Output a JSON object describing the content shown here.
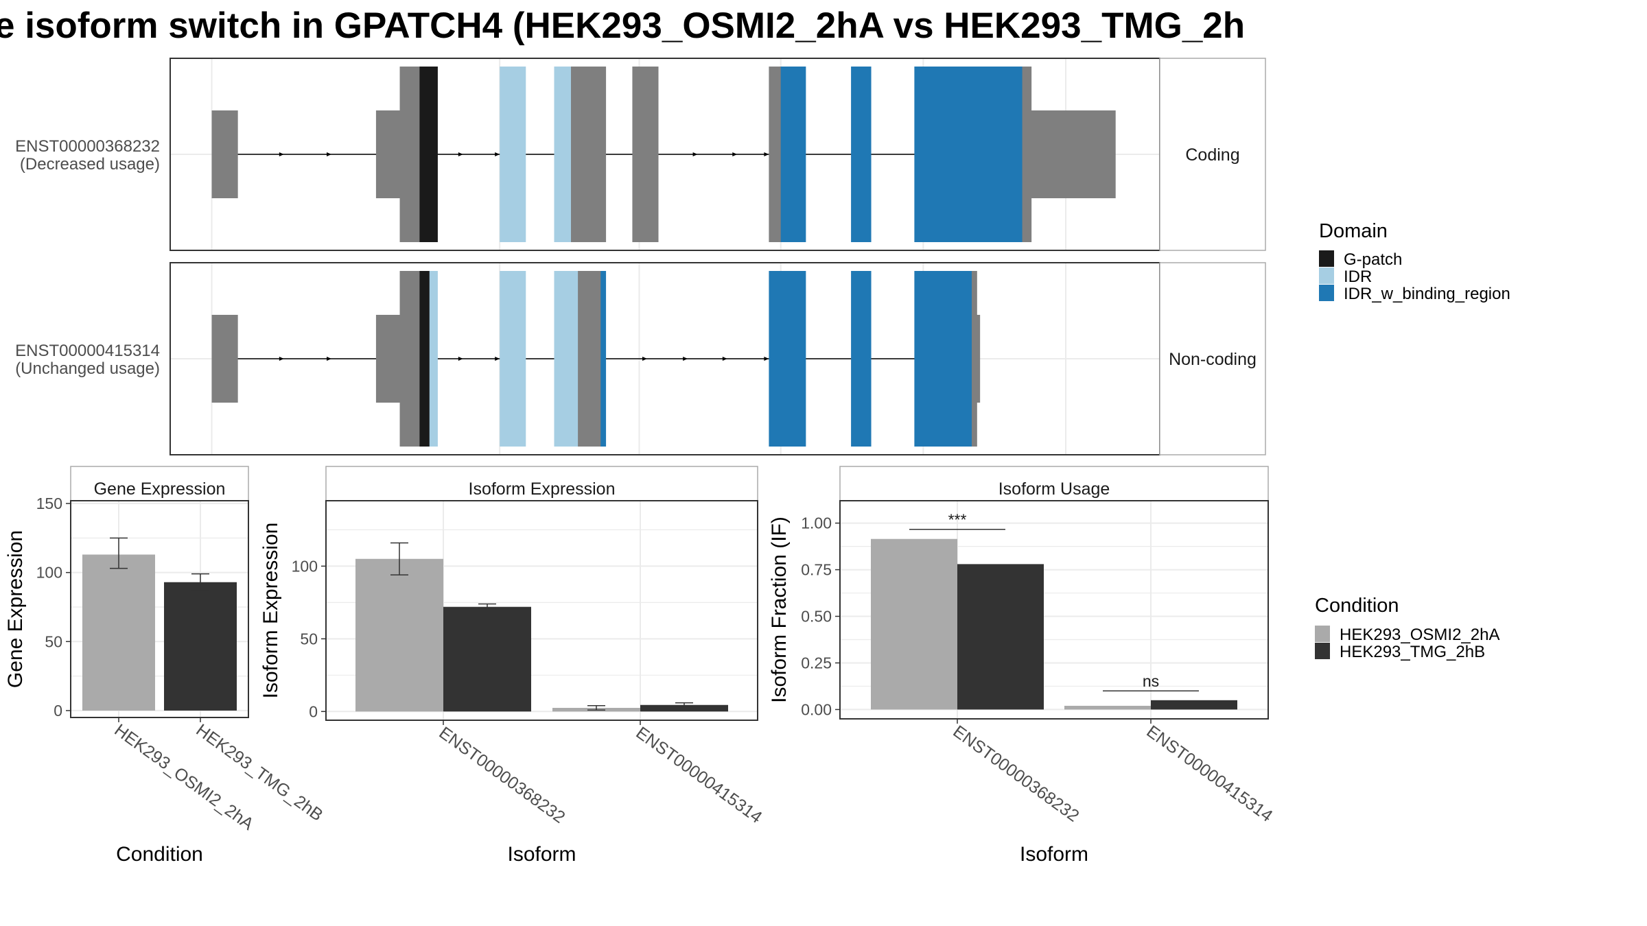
{
  "title": "e isoform switch in GPATCH4 (HEK293_OSMI2_2hA vs HEK293_TMG_2h",
  "colors": {
    "exon": "#7F7F7F",
    "cond_a": "#AAAAAA",
    "cond_b": "#333333",
    "panel_border": "#333333",
    "strip_border": "#AAAAAA",
    "grid": "#EBEBEB"
  },
  "structure": {
    "domain_legend": {
      "title": "Domain",
      "items": [
        {
          "name": "G-patch",
          "color": "#1A1A1A"
        },
        {
          "name": "IDR",
          "color": "#A6CEE3"
        },
        {
          "name": "IDR_w_binding_region",
          "color": "#1F78B4"
        }
      ]
    },
    "transcripts": [
      {
        "id": "ENST00000368232",
        "usage": "(Decreased usage)",
        "coding": "Coding",
        "line": [
          0.042,
          0.89
        ],
        "exons": [
          {
            "start": 0.042,
            "end": 0.068,
            "h": "s"
          },
          {
            "start": 0.208,
            "end": 0.232,
            "h": "s"
          },
          {
            "start": 0.232,
            "end": 0.252,
            "h": "t"
          },
          {
            "start": 0.252,
            "end": 0.27,
            "h": "t",
            "domain": "G-patch"
          },
          {
            "start": 0.333,
            "end": 0.359,
            "h": "t",
            "domain": "IDR"
          },
          {
            "start": 0.388,
            "end": 0.405,
            "h": "t",
            "domain": "IDR"
          },
          {
            "start": 0.405,
            "end": 0.44,
            "h": "t"
          },
          {
            "start": 0.467,
            "end": 0.493,
            "h": "t"
          },
          {
            "start": 0.605,
            "end": 0.617,
            "h": "t"
          },
          {
            "start": 0.617,
            "end": 0.642,
            "h": "t",
            "domain": "IDR_w_binding_region"
          },
          {
            "start": 0.688,
            "end": 0.708,
            "h": "t",
            "domain": "IDR_w_binding_region"
          },
          {
            "start": 0.752,
            "end": 0.861,
            "h": "t",
            "domain": "IDR_w_binding_region"
          },
          {
            "start": 0.861,
            "end": 0.87,
            "h": "t"
          },
          {
            "start": 0.87,
            "end": 0.955,
            "h": "s"
          }
        ],
        "arrows": [
          0.115,
          0.163,
          0.296,
          0.333,
          0.533,
          0.573,
          0.605
        ]
      },
      {
        "id": "ENST00000415314",
        "usage": "(Unchanged usage)",
        "coding": "Non-coding",
        "line": [
          0.042,
          0.818
        ],
        "exons": [
          {
            "start": 0.042,
            "end": 0.068,
            "h": "s"
          },
          {
            "start": 0.208,
            "end": 0.232,
            "h": "s"
          },
          {
            "start": 0.232,
            "end": 0.252,
            "h": "t"
          },
          {
            "start": 0.252,
            "end": 0.262,
            "h": "t",
            "domain": "G-patch"
          },
          {
            "start": 0.262,
            "end": 0.27,
            "h": "t",
            "domain": "IDR"
          },
          {
            "start": 0.333,
            "end": 0.359,
            "h": "t",
            "domain": "IDR"
          },
          {
            "start": 0.388,
            "end": 0.412,
            "h": "t",
            "domain": "IDR"
          },
          {
            "start": 0.412,
            "end": 0.435,
            "h": "t"
          },
          {
            "start": 0.435,
            "end": 0.44,
            "h": "t",
            "domain": "IDR_w_binding_region"
          },
          {
            "start": 0.605,
            "end": 0.642,
            "h": "t",
            "domain": "IDR_w_binding_region"
          },
          {
            "start": 0.688,
            "end": 0.708,
            "h": "t",
            "domain": "IDR_w_binding_region"
          },
          {
            "start": 0.752,
            "end": 0.81,
            "h": "t",
            "domain": "IDR_w_binding_region"
          },
          {
            "start": 0.81,
            "end": 0.815,
            "h": "t"
          },
          {
            "start": 0.815,
            "end": 0.818,
            "h": "s"
          }
        ],
        "arrows": [
          0.115,
          0.163,
          0.296,
          0.333,
          0.482,
          0.523,
          0.563,
          0.605
        ]
      }
    ]
  },
  "chart_data": [
    {
      "type": "bar",
      "title": "Gene Expression",
      "xlabel": "Condition",
      "ylabel": "Gene Expression",
      "categories": [
        "HEK293_OSMI2_2hA",
        "HEK293_TMG_2hB"
      ],
      "values": [
        113,
        93
      ],
      "errors": [
        [
          103,
          125
        ],
        [
          87,
          99
        ]
      ],
      "ylim": [
        -5,
        152
      ],
      "yticks": [
        0,
        50,
        100,
        150
      ],
      "grid": true
    },
    {
      "type": "bar",
      "title": "Isoform Expression",
      "xlabel": "Isoform",
      "ylabel": "Isoform Expression",
      "categories": [
        "ENST00000368232",
        "ENST00000415314"
      ],
      "series": [
        {
          "values": [
            105,
            2.5
          ],
          "errors": [
            [
              94,
              116
            ],
            [
              1,
              4
            ]
          ]
        },
        {
          "values": [
            72,
            4.5
          ],
          "errors": [
            [
              71,
              74
            ],
            [
              3.5,
              6
            ]
          ]
        }
      ],
      "ylim": [
        -6,
        145
      ],
      "yticks": [
        0,
        50,
        100
      ],
      "grid": true
    },
    {
      "type": "bar",
      "title": "Isoform Usage",
      "xlabel": "Isoform",
      "ylabel": "Isoform Fraction (IF)",
      "categories": [
        "ENST00000368232",
        "ENST00000415314"
      ],
      "series": [
        {
          "values": [
            0.915,
            0.02
          ]
        },
        {
          "values": [
            0.78,
            0.05
          ]
        }
      ],
      "significance": [
        "***",
        "ns"
      ],
      "ylim": [
        -0.05,
        1.12
      ],
      "yticks": [
        0.0,
        0.25,
        0.5,
        0.75,
        1.0
      ],
      "ytick_labels": [
        "0.00",
        "0.25",
        "0.50",
        "0.75",
        "1.00"
      ],
      "grid": true
    }
  ],
  "condition_legend": {
    "title": "Condition",
    "items": [
      "HEK293_OSMI2_2hA",
      "HEK293_TMG_2hB"
    ]
  }
}
